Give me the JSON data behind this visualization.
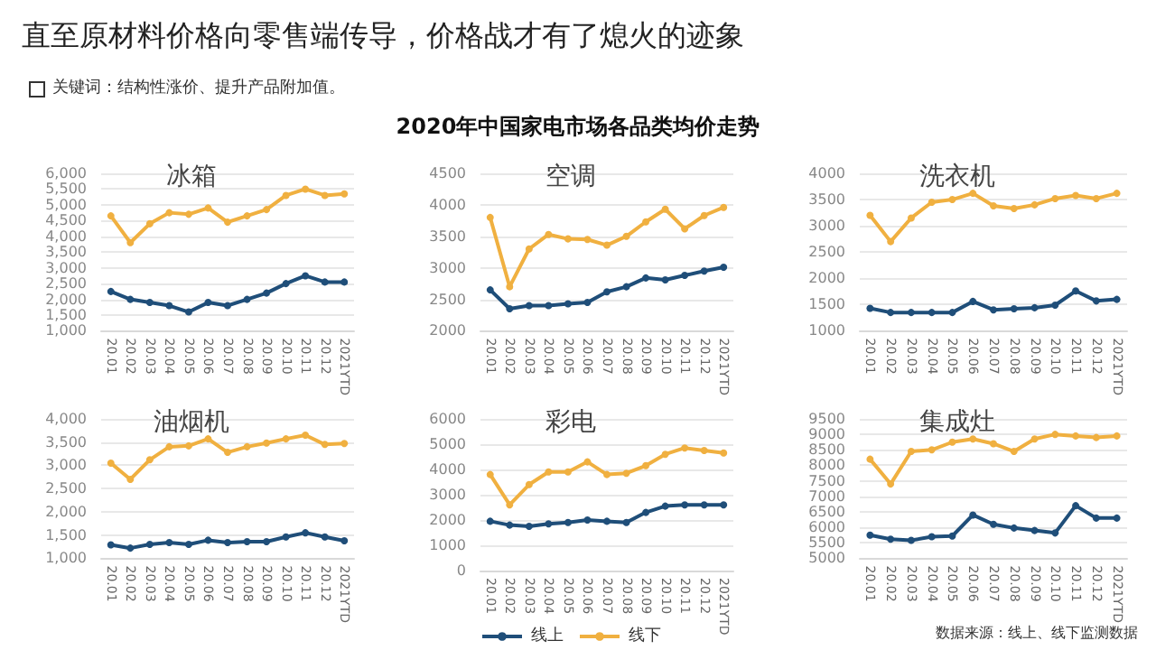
{
  "chart_data": [
    {
      "type": "other",
      "title": "直至原材料价格向零售端传导，价格战才有了熄火的迹象",
      "subtitle": "2020年中国家电市场各品类均价走势",
      "annotations": [
        "关键词：结构性涨价、提升产品附加值。",
        "数据来源：线上、线下监测数据"
      ]
    },
    {
      "type": "line",
      "title": "冰箱",
      "categories": [
        "20.01",
        "20.02",
        "20.03",
        "20.04",
        "20.05",
        "20.06",
        "20.07",
        "20.08",
        "20.09",
        "20.10",
        "20.11",
        "20.12",
        "2021YTD"
      ],
      "series": [
        {
          "color": "#1f4e79",
          "values": [
            2250,
            2000,
            1900,
            1800,
            1600,
            1900,
            1800,
            2000,
            2200,
            2500,
            2750,
            2550,
            2550
          ]
        },
        {
          "color": "#f0b040",
          "values": [
            4650,
            3800,
            4400,
            4750,
            4700,
            4900,
            4450,
            4650,
            4850,
            5300,
            5500,
            5300,
            5350
          ]
        }
      ],
      "ylim": [
        1000,
        6000
      ],
      "yticks": [
        {
          "value": 1000,
          "label": "1,000"
        },
        {
          "value": 1500,
          "label": "1,500"
        },
        {
          "value": 2000,
          "label": "2,000"
        },
        {
          "value": 2500,
          "label": "2,500"
        },
        {
          "value": 3000,
          "label": "3,000"
        },
        {
          "value": 3500,
          "label": "3,500"
        },
        {
          "value": 4000,
          "label": "4,000"
        },
        {
          "value": 4500,
          "label": "4,500"
        },
        {
          "value": 5000,
          "label": "5,000"
        },
        {
          "value": 5500,
          "label": "5,500"
        },
        {
          "value": 6000,
          "label": "6,000"
        }
      ],
      "grid": "y",
      "marker": "circle",
      "legend": false
    },
    {
      "type": "line",
      "title": "空调",
      "categories": [
        "20.01",
        "20.02",
        "20.03",
        "20.04",
        "20.05",
        "20.06",
        "20.07",
        "20.08",
        "20.09",
        "20.10",
        "20.11",
        "20.12",
        "2021YTD"
      ],
      "series": [
        {
          "color": "#1f4e79",
          "values": [
            2650,
            2350,
            2400,
            2400,
            2430,
            2450,
            2620,
            2700,
            2840,
            2810,
            2880,
            2950,
            3010
          ]
        },
        {
          "color": "#f0b040",
          "values": [
            3800,
            2700,
            3300,
            3530,
            3460,
            3450,
            3360,
            3500,
            3730,
            3930,
            3620,
            3830,
            3960
          ]
        }
      ],
      "ylim": [
        2000,
        4500
      ],
      "yticks": [
        2000,
        2500,
        3000,
        3500,
        4000,
        4500
      ],
      "grid": "y",
      "marker": "circle",
      "legend": false
    },
    {
      "type": "line",
      "title": "洗衣机",
      "categories": [
        "20.01",
        "20.02",
        "20.03",
        "20.04",
        "20.05",
        "20.06",
        "20.07",
        "20.08",
        "20.09",
        "20.10",
        "20.11",
        "20.12",
        "2021YTD"
      ],
      "series": [
        {
          "color": "#1f4e79",
          "values": [
            1430,
            1350,
            1350,
            1350,
            1350,
            1560,
            1400,
            1420,
            1440,
            1490,
            1760,
            1570,
            1600
          ]
        },
        {
          "color": "#f0b040",
          "values": [
            3200,
            2700,
            3150,
            3450,
            3500,
            3620,
            3380,
            3330,
            3400,
            3520,
            3580,
            3520,
            3620
          ]
        }
      ],
      "ylim": [
        1000,
        4000
      ],
      "yticks": [
        1000,
        1500,
        2000,
        2500,
        3000,
        3500,
        4000
      ],
      "grid": "y",
      "marker": "circle",
      "legend": false
    },
    {
      "type": "line",
      "title": "油烟机",
      "categories": [
        "20.01",
        "20.02",
        "20.03",
        "20.04",
        "20.05",
        "20.06",
        "20.07",
        "20.08",
        "20.09",
        "20.10",
        "20.11",
        "20.12",
        "2021YTD"
      ],
      "series": [
        {
          "color": "#1f4e79",
          "values": [
            1290,
            1220,
            1300,
            1340,
            1300,
            1390,
            1340,
            1360,
            1360,
            1460,
            1550,
            1460,
            1380
          ]
        },
        {
          "color": "#f0b040",
          "values": [
            3050,
            2700,
            3120,
            3400,
            3420,
            3570,
            3280,
            3400,
            3480,
            3570,
            3650,
            3450,
            3470
          ]
        }
      ],
      "ylim": [
        1000,
        4000
      ],
      "yticks": [
        {
          "value": 1000,
          "label": "1,000"
        },
        {
          "value": 1500,
          "label": "1,500"
        },
        {
          "value": 2000,
          "label": "2,000"
        },
        {
          "value": 2500,
          "label": "2,500"
        },
        {
          "value": 3000,
          "label": "3,000"
        },
        {
          "value": 3500,
          "label": "3,500"
        },
        {
          "value": 4000,
          "label": "4,000"
        }
      ],
      "grid": "y",
      "marker": "circle",
      "legend": false
    },
    {
      "type": "line",
      "title": "彩电",
      "categories": [
        "20.01",
        "20.02",
        "20.03",
        "20.04",
        "20.05",
        "20.06",
        "20.07",
        "20.08",
        "20.09",
        "20.10",
        "20.11",
        "20.12",
        "2021YTD"
      ],
      "series": [
        {
          "name": "线上",
          "color": "#1f4e79",
          "values": [
            1950,
            1800,
            1750,
            1850,
            1900,
            2000,
            1950,
            1900,
            2300,
            2550,
            2600,
            2600,
            2600
          ]
        },
        {
          "name": "线下",
          "color": "#f0b040",
          "values": [
            3800,
            2600,
            3400,
            3900,
            3900,
            4300,
            3800,
            3850,
            4150,
            4600,
            4850,
            4750,
            4650
          ]
        }
      ],
      "ylim": [
        0,
        6000
      ],
      "yticks": [
        0,
        1000,
        2000,
        3000,
        4000,
        5000,
        6000
      ],
      "grid": "y",
      "marker": "circle",
      "legend": "bottom"
    },
    {
      "type": "line",
      "title": "集成灶",
      "categories": [
        "20.01",
        "20.02",
        "20.03",
        "20.04",
        "20.05",
        "20.06",
        "20.07",
        "20.08",
        "20.09",
        "20.10",
        "20.11",
        "20.12",
        "2021YTD"
      ],
      "series": [
        {
          "color": "#1f4e79",
          "values": [
            5750,
            5620,
            5580,
            5700,
            5720,
            6400,
            6100,
            5980,
            5900,
            5820,
            6700,
            6300,
            6300
          ]
        },
        {
          "color": "#f0b040",
          "values": [
            8200,
            7400,
            8450,
            8500,
            8750,
            8850,
            8700,
            8450,
            8850,
            9000,
            8950,
            8900,
            8950
          ]
        }
      ],
      "ylim": [
        5000,
        9500
      ],
      "yticks": [
        5000,
        5500,
        6000,
        6500,
        7000,
        7500,
        8000,
        8500,
        9000,
        9500
      ],
      "grid": "y",
      "marker": "circle",
      "legend": false
    }
  ]
}
